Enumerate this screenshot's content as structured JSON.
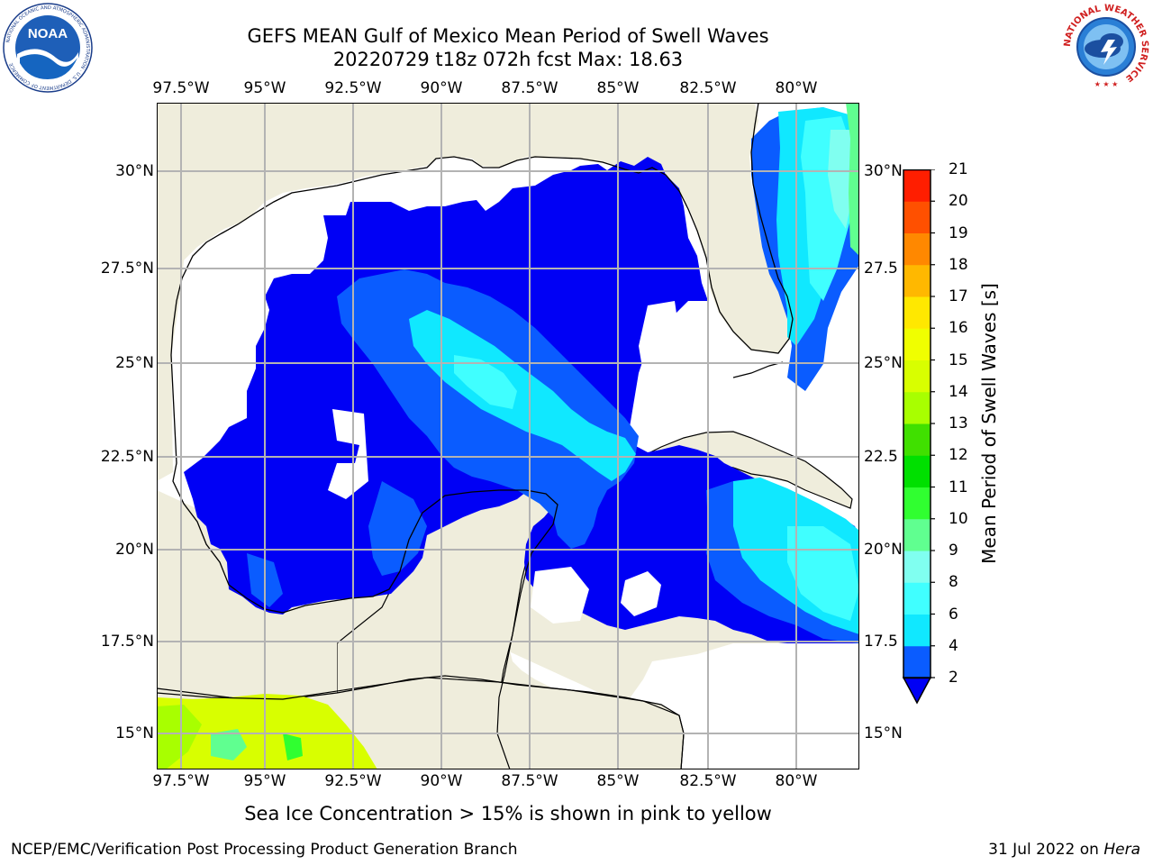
{
  "title": {
    "line1": "GEFS MEAN Gulf of Mexico Mean Period of Swell Waves",
    "line2": "20220729 t18z 072h fcst   Max: 18.63"
  },
  "map": {
    "lon_labels": [
      "97.5°W",
      "95°W",
      "92.5°W",
      "90°W",
      "87.5°W",
      "85°W",
      "82.5°W",
      "80°W"
    ],
    "lat_labels_left": [
      "30°N",
      "27.5°N",
      "25°N",
      "22.5°N",
      "20°N",
      "17.5°N",
      "15°N"
    ],
    "lat_labels_right": [
      "30°N",
      "27.5",
      "25°N",
      "22.5",
      "20°N",
      "17.5",
      "15°N"
    ],
    "land_color": "#efeddc",
    "ocean_nodata_color": "#ffffff"
  },
  "colorbar": {
    "label": "Mean Period of Swell Waves [s]",
    "ticks": [
      "2",
      "4",
      "6",
      "8",
      "9",
      "10",
      "11",
      "12",
      "13",
      "14",
      "15",
      "16",
      "17",
      "18",
      "19",
      "20",
      "21"
    ],
    "colors": [
      "#0a5cff",
      "#10e8ff",
      "#40ffff",
      "#80fff0",
      "#60ff90",
      "#30ff30",
      "#00e000",
      "#40e000",
      "#a8ff00",
      "#d8ff00",
      "#f0ff00",
      "#ffe800",
      "#ffb800",
      "#ff8800",
      "#ff5000",
      "#ff1e00"
    ],
    "under_color": "#0000f5"
  },
  "sea_ice_note": "Sea Ice Concentration > 15% is shown in pink to yellow",
  "footer": {
    "left": "NCEP/EMC/Verification Post Processing Product Generation Branch",
    "right_date": "31 Jul 2022 on ",
    "right_host": "Hera"
  },
  "logos": {
    "noaa": "NOAA",
    "noaa_ring": "NATIONAL OCEANIC AND ATMOSPHERIC ADMINISTRATION · U.S. DEPARTMENT OF COMMERCE",
    "nws_ring": "NATIONAL WEATHER SERVICE"
  }
}
